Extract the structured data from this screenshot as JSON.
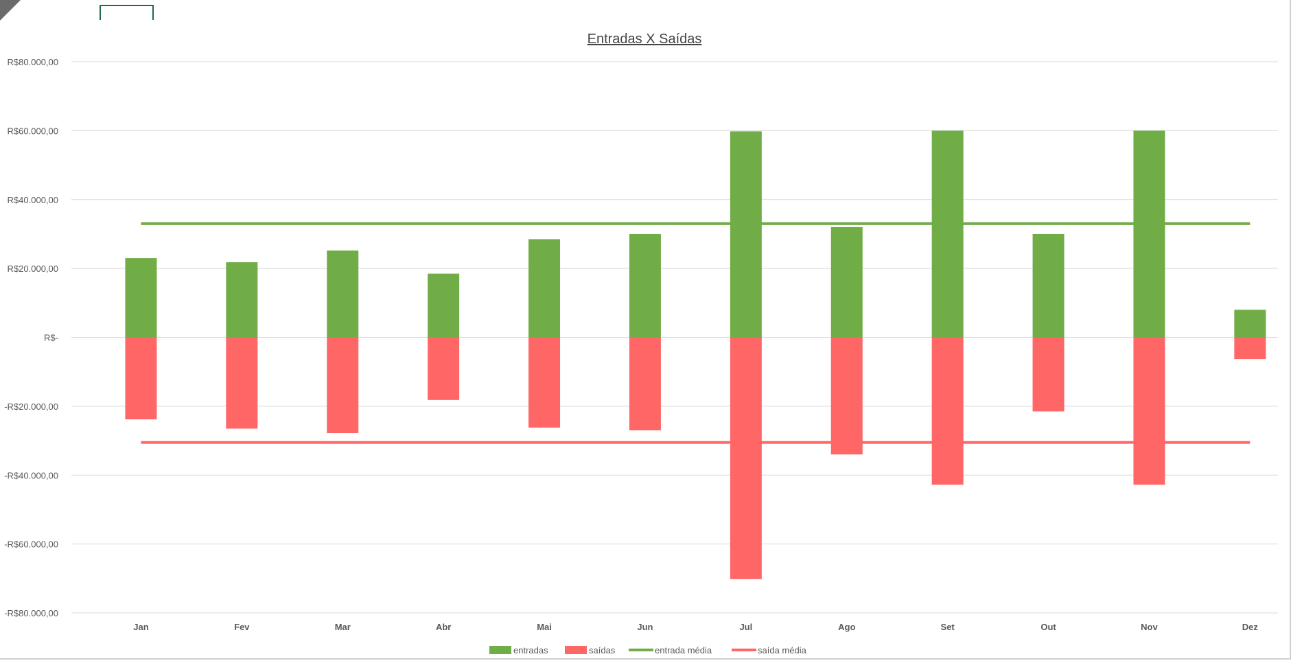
{
  "chart_data": {
    "type": "bar",
    "title": "Entradas X Saídas",
    "categories": [
      "Jan",
      "Fev",
      "Mar",
      "Abr",
      "Mai",
      "Jun",
      "Jul",
      "Ago",
      "Set",
      "Out",
      "Nov",
      "Dez"
    ],
    "series": [
      {
        "name": "entradas",
        "type": "bar",
        "color": "#70ad47",
        "values": [
          23000,
          21800,
          25200,
          18500,
          28500,
          30000,
          59800,
          32000,
          60000,
          30000,
          60000,
          8000
        ]
      },
      {
        "name": "saídas",
        "type": "bar",
        "color": "#ff6666",
        "values": [
          -23800,
          -26500,
          -27800,
          -18200,
          -26200,
          -27000,
          -70200,
          -34000,
          -42800,
          -21500,
          -42800,
          -6300
        ]
      },
      {
        "name": "entrada média",
        "type": "line",
        "color": "#70ad47",
        "value": 33000
      },
      {
        "name": "saída média",
        "type": "line",
        "color": "#ff6666",
        "value": -30500
      }
    ],
    "ylim": [
      -80000,
      80000
    ],
    "yticks": [
      80000,
      60000,
      40000,
      20000,
      0,
      -20000,
      -40000,
      -60000,
      -80000
    ],
    "ytick_labels": [
      "R$80.000,00",
      "R$60.000,00",
      "R$40.000,00",
      "R$20.000,00",
      "R$-",
      "-R$20.000,00",
      "-R$40.000,00",
      "-R$60.000,00",
      "-R$80.000,00"
    ],
    "grid": true,
    "legend_position": "bottom",
    "xlabel": "",
    "ylabel": ""
  }
}
